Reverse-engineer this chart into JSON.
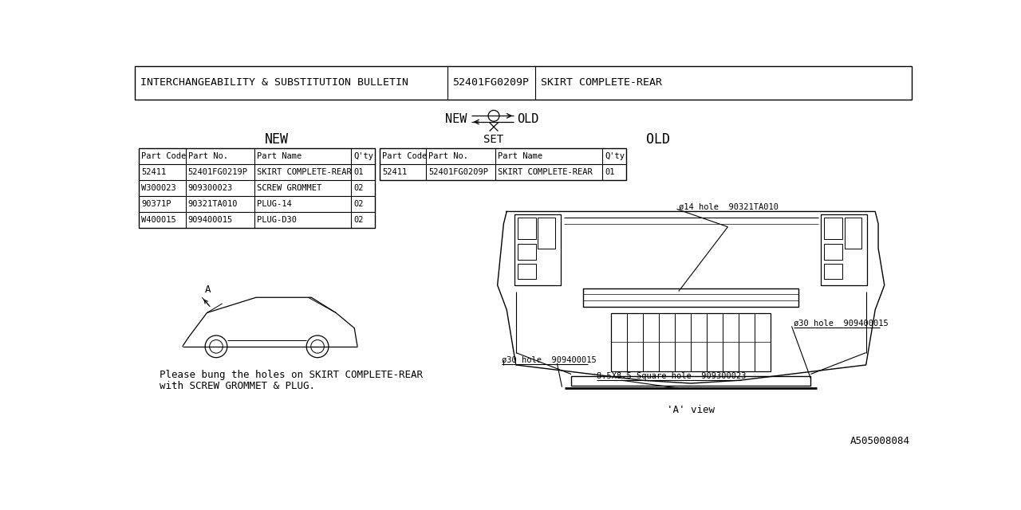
{
  "title_part1": "INTERCHANGEABILITY & SUBSTITUTION BULLETIN",
  "title_part2": "52401FG0209P",
  "title_part3": "SKIRT COMPLETE-REAR",
  "header_row": [
    "Part Code",
    "Part No.",
    "Part Name",
    "Q'ty"
  ],
  "new_rows": [
    [
      "52411",
      "52401FG0219P",
      "SKIRT COMPLETE-REAR",
      "01"
    ],
    [
      "W300023",
      "909300023",
      "SCREW GROMMET",
      "02"
    ],
    [
      "90371P",
      "90321TA010",
      "PLUG-14",
      "02"
    ],
    [
      "W400015",
      "909400015",
      "PLUG-D30",
      "02"
    ]
  ],
  "old_rows": [
    [
      "52411",
      "52401FG0209P",
      "SKIRT COMPLETE-REAR",
      "01"
    ]
  ],
  "note_line1": "Please bung the holes on SKIRT COMPLETE-REAR",
  "note_line2": "with SCREW GROMMET & PLUG.",
  "label_new_sym": "NEW",
  "label_old_sym": "OLD",
  "label_set": "SET",
  "label_new_col": "NEW",
  "label_old_col": "OLD",
  "label_a_view": "'A' view",
  "part_no_ref": "A505008084",
  "annotation_14hole": "ø14 hole  90321TA010",
  "annotation_30hole_left": "ø30 hole  909400015",
  "annotation_30hole_right": "ø30 hole  909400015",
  "annotation_square": "8.5X8.5 Square hole  909300023",
  "bg_color": "#ffffff",
  "line_color": "#000000",
  "text_color": "#000000"
}
